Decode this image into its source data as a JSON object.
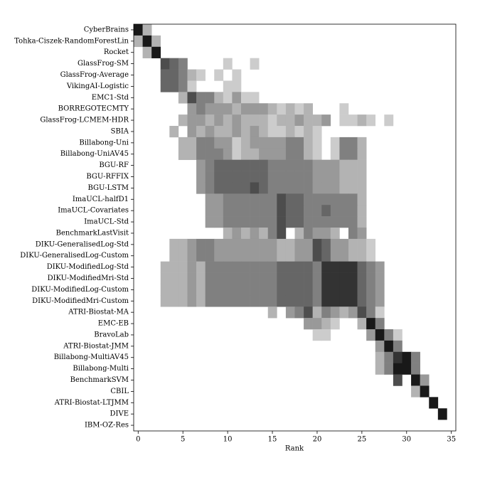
{
  "chart_data": {
    "type": "heatmap",
    "xlabel": "Rank",
    "colormap": "Greys",
    "rows": [
      "CyberBrains",
      "Tohka-Ciszek-RandomForestLin",
      "Rocket",
      "GlassFrog-SM",
      "GlassFrog-Average",
      "VikingAI-Logistic",
      "EMC1-Std",
      "BORREGOTECMTY",
      "GlassFrog-LCMEM-HDR",
      "SBIA",
      "Billabong-Uni",
      "Billabong-UniAV45",
      "BGU-RF",
      "BGU-RFFIX",
      "BGU-LSTM",
      "ImaUCL-halfD1",
      "ImaUCL-Covariates",
      "ImaUCL-Std",
      "BenchmarkLastVisit",
      "DIKU-GeneralisedLog-Std",
      "DIKU-GeneralisedLog-Custom",
      "DIKU-ModifiedLog-Std",
      "DIKU-ModifiedMri-Std",
      "DIKU-ModifiedLog-Custom",
      "DIKU-ModifiedMri-Custom",
      "ATRI-Biostat-MA",
      "EMC-EB",
      "BravoLab",
      "ATRI-Biostat-JMM",
      "Billabong-MultiAV45",
      "Billabong-Multi",
      "BenchmarkSVM",
      "CBIL",
      "ATRI-Biostat-LTJMM",
      "DIVE",
      "IBM-OZ-Res"
    ],
    "x": [
      0,
      1,
      2,
      3,
      4,
      5,
      6,
      7,
      8,
      9,
      10,
      11,
      12,
      13,
      14,
      15,
      16,
      17,
      18,
      19,
      20,
      21,
      22,
      23,
      24,
      25,
      26,
      27,
      28,
      29,
      30,
      31,
      32,
      33,
      34,
      35
    ],
    "xlim": [
      -0.5,
      35.5
    ],
    "xticks": [
      0,
      5,
      10,
      15,
      20,
      25,
      30,
      35
    ],
    "values": [
      [
        0.9,
        0.3,
        null,
        null,
        null,
        null,
        null,
        null,
        null,
        null,
        null,
        null,
        null,
        null,
        null,
        null,
        null,
        null,
        null,
        null,
        null,
        null,
        null,
        null,
        null,
        null,
        null,
        null,
        null,
        null,
        null,
        null,
        null,
        null,
        null,
        null
      ],
      [
        0.3,
        0.9,
        0.3,
        null,
        null,
        null,
        null,
        null,
        null,
        null,
        null,
        null,
        null,
        null,
        null,
        null,
        null,
        null,
        null,
        null,
        null,
        null,
        null,
        null,
        null,
        null,
        null,
        null,
        null,
        null,
        null,
        null,
        null,
        null,
        null,
        null
      ],
      [
        null,
        0.3,
        0.9,
        null,
        null,
        null,
        null,
        null,
        null,
        null,
        null,
        null,
        null,
        null,
        null,
        null,
        null,
        null,
        null,
        null,
        null,
        null,
        null,
        null,
        null,
        null,
        null,
        null,
        null,
        null,
        null,
        null,
        null,
        null,
        null,
        null
      ],
      [
        null,
        null,
        null,
        0.7,
        0.6,
        0.5,
        null,
        null,
        null,
        null,
        0.2,
        null,
        null,
        0.2,
        null,
        null,
        null,
        null,
        null,
        null,
        null,
        null,
        null,
        null,
        null,
        null,
        null,
        null,
        null,
        null,
        null,
        null,
        null,
        null,
        null,
        null
      ],
      [
        null,
        null,
        null,
        0.6,
        0.6,
        0.5,
        0.3,
        0.2,
        null,
        0.2,
        null,
        0.2,
        null,
        null,
        null,
        null,
        null,
        null,
        null,
        null,
        null,
        null,
        null,
        null,
        null,
        null,
        null,
        null,
        null,
        null,
        null,
        null,
        null,
        null,
        null,
        null
      ],
      [
        null,
        null,
        null,
        0.6,
        0.6,
        0.5,
        0.2,
        null,
        null,
        null,
        0.2,
        0.2,
        null,
        null,
        null,
        null,
        null,
        null,
        null,
        null,
        null,
        null,
        null,
        null,
        null,
        null,
        null,
        null,
        null,
        null,
        null,
        null,
        null,
        null,
        null,
        null
      ],
      [
        null,
        null,
        null,
        null,
        null,
        0.3,
        0.7,
        0.5,
        0.5,
        0.3,
        0.2,
        0.4,
        0.2,
        0.2,
        null,
        null,
        null,
        null,
        null,
        null,
        null,
        null,
        null,
        null,
        null,
        null,
        null,
        null,
        null,
        null,
        null,
        null,
        null,
        null,
        null,
        null
      ],
      [
        null,
        null,
        null,
        null,
        null,
        null,
        0.4,
        0.5,
        0.4,
        0.4,
        0.4,
        0.3,
        0.4,
        0.4,
        0.4,
        0.3,
        0.2,
        0.3,
        0.2,
        0.3,
        null,
        null,
        null,
        0.2,
        null,
        null,
        null,
        null,
        null,
        null,
        null,
        null,
        null,
        null,
        null,
        null
      ],
      [
        null,
        null,
        null,
        null,
        null,
        0.3,
        0.4,
        0.4,
        0.3,
        0.4,
        0.3,
        0.4,
        0.3,
        0.3,
        0.3,
        0.2,
        0.3,
        0.3,
        0.4,
        0.3,
        0.3,
        0.4,
        null,
        0.2,
        0.2,
        0.3,
        0.2,
        null,
        0.2,
        null,
        null,
        null,
        null,
        null,
        null,
        null
      ],
      [
        null,
        null,
        null,
        null,
        0.3,
        null,
        0.4,
        0.3,
        0.4,
        0.3,
        0.3,
        0.4,
        0.3,
        0.4,
        0.3,
        0.2,
        0.2,
        0.3,
        0.2,
        0.3,
        0.2,
        null,
        null,
        null,
        null,
        null,
        null,
        null,
        null,
        null,
        null,
        null,
        null,
        null,
        null,
        null
      ],
      [
        null,
        null,
        null,
        null,
        null,
        0.3,
        0.3,
        0.5,
        0.5,
        0.4,
        0.4,
        0.2,
        0.3,
        0.4,
        0.4,
        0.4,
        0.4,
        0.5,
        0.5,
        0.3,
        0.2,
        null,
        0.2,
        0.5,
        0.5,
        0.3,
        null,
        null,
        null,
        null,
        null,
        null,
        null,
        null,
        null,
        null
      ],
      [
        null,
        null,
        null,
        null,
        null,
        0.3,
        0.3,
        0.5,
        0.5,
        0.5,
        0.4,
        0.2,
        0.3,
        0.3,
        0.4,
        0.4,
        0.4,
        0.5,
        0.5,
        0.3,
        0.2,
        null,
        0.2,
        0.5,
        0.5,
        0.3,
        null,
        null,
        null,
        null,
        null,
        null,
        null,
        null,
        null,
        null
      ],
      [
        null,
        null,
        null,
        null,
        null,
        null,
        null,
        0.4,
        0.5,
        0.6,
        0.6,
        0.6,
        0.6,
        0.6,
        0.6,
        0.5,
        0.5,
        0.5,
        0.5,
        0.5,
        0.4,
        0.4,
        0.4,
        0.3,
        0.3,
        0.3,
        null,
        null,
        null,
        null,
        null,
        null,
        null,
        null,
        null,
        null
      ],
      [
        null,
        null,
        null,
        null,
        null,
        null,
        null,
        0.4,
        0.5,
        0.6,
        0.6,
        0.6,
        0.6,
        0.6,
        0.6,
        0.5,
        0.5,
        0.5,
        0.5,
        0.5,
        0.4,
        0.4,
        0.4,
        0.3,
        0.3,
        0.3,
        null,
        null,
        null,
        null,
        null,
        null,
        null,
        null,
        null,
        null
      ],
      [
        null,
        null,
        null,
        null,
        null,
        null,
        null,
        0.4,
        0.5,
        0.6,
        0.6,
        0.6,
        0.6,
        0.7,
        0.6,
        0.5,
        0.5,
        0.5,
        0.5,
        0.5,
        0.4,
        0.4,
        0.4,
        0.3,
        0.3,
        0.3,
        null,
        null,
        null,
        null,
        null,
        null,
        null,
        null,
        null,
        null
      ],
      [
        null,
        null,
        null,
        null,
        null,
        null,
        null,
        null,
        0.4,
        0.4,
        0.5,
        0.5,
        0.5,
        0.5,
        0.5,
        0.5,
        0.7,
        0.6,
        0.6,
        0.5,
        0.5,
        0.5,
        0.5,
        0.5,
        0.5,
        0.3,
        null,
        null,
        null,
        null,
        null,
        null,
        null,
        null,
        null,
        null
      ],
      [
        null,
        null,
        null,
        null,
        null,
        null,
        null,
        null,
        0.4,
        0.4,
        0.5,
        0.5,
        0.5,
        0.5,
        0.5,
        0.5,
        0.7,
        0.6,
        0.6,
        0.5,
        0.5,
        0.6,
        0.5,
        0.5,
        0.5,
        0.3,
        null,
        null,
        null,
        null,
        null,
        null,
        null,
        null,
        null,
        null
      ],
      [
        null,
        null,
        null,
        null,
        null,
        null,
        null,
        null,
        0.4,
        0.4,
        0.5,
        0.5,
        0.5,
        0.5,
        0.5,
        0.5,
        0.7,
        0.6,
        0.6,
        0.5,
        0.5,
        0.5,
        0.5,
        0.5,
        0.5,
        0.3,
        null,
        null,
        null,
        null,
        null,
        null,
        null,
        null,
        null,
        null
      ],
      [
        null,
        null,
        null,
        null,
        null,
        null,
        null,
        null,
        null,
        null,
        0.3,
        0.4,
        0.3,
        0.4,
        0.3,
        0.5,
        0.7,
        null,
        0.3,
        0.5,
        0.4,
        0.4,
        0.3,
        null,
        0.5,
        0.4,
        null,
        null,
        null,
        null,
        null,
        null,
        null,
        null,
        null,
        null
      ],
      [
        null,
        null,
        null,
        null,
        0.3,
        0.3,
        0.4,
        0.5,
        0.5,
        0.4,
        0.4,
        0.4,
        0.4,
        0.4,
        0.4,
        0.4,
        0.3,
        0.3,
        0.4,
        0.4,
        0.7,
        0.6,
        0.4,
        0.4,
        0.3,
        0.3,
        0.2,
        null,
        null,
        null,
        null,
        null,
        null,
        null,
        null,
        null
      ],
      [
        null,
        null,
        null,
        null,
        0.3,
        0.3,
        0.4,
        0.5,
        0.5,
        0.4,
        0.4,
        0.4,
        0.4,
        0.4,
        0.4,
        0.4,
        0.3,
        0.3,
        0.4,
        0.4,
        0.7,
        0.6,
        0.4,
        0.4,
        0.3,
        0.3,
        0.2,
        null,
        null,
        null,
        null,
        null,
        null,
        null,
        null,
        null
      ],
      [
        null,
        null,
        null,
        0.3,
        0.3,
        0.3,
        0.4,
        0.3,
        0.5,
        0.5,
        0.5,
        0.5,
        0.5,
        0.5,
        0.5,
        0.5,
        0.6,
        0.6,
        0.6,
        0.6,
        0.5,
        0.8,
        0.8,
        0.8,
        0.8,
        0.6,
        0.5,
        0.4,
        null,
        null,
        null,
        null,
        null,
        null,
        null,
        null
      ],
      [
        null,
        null,
        null,
        0.3,
        0.3,
        0.3,
        0.4,
        0.3,
        0.5,
        0.5,
        0.5,
        0.5,
        0.5,
        0.5,
        0.5,
        0.5,
        0.6,
        0.6,
        0.6,
        0.6,
        0.5,
        0.8,
        0.8,
        0.8,
        0.8,
        0.6,
        0.5,
        0.4,
        null,
        null,
        null,
        null,
        null,
        null,
        null,
        null
      ],
      [
        null,
        null,
        null,
        0.3,
        0.3,
        0.3,
        0.4,
        0.3,
        0.5,
        0.5,
        0.5,
        0.5,
        0.5,
        0.5,
        0.5,
        0.5,
        0.6,
        0.6,
        0.6,
        0.6,
        0.5,
        0.8,
        0.8,
        0.8,
        0.8,
        0.6,
        0.5,
        0.4,
        null,
        null,
        null,
        null,
        null,
        null,
        null,
        null
      ],
      [
        null,
        null,
        null,
        0.3,
        0.3,
        0.3,
        0.4,
        0.3,
        0.5,
        0.5,
        0.5,
        0.5,
        0.5,
        0.5,
        0.5,
        0.5,
        0.6,
        0.6,
        0.6,
        0.6,
        0.5,
        0.8,
        0.8,
        0.8,
        0.8,
        0.6,
        0.5,
        0.4,
        null,
        null,
        null,
        null,
        null,
        null,
        null,
        null
      ],
      [
        null,
        null,
        null,
        null,
        null,
        null,
        null,
        null,
        null,
        null,
        null,
        null,
        null,
        null,
        null,
        0.3,
        null,
        0.4,
        0.5,
        0.7,
        0.3,
        0.5,
        0.4,
        0.3,
        0.4,
        0.7,
        0.5,
        0.2,
        null,
        null,
        null,
        null,
        null,
        null,
        null,
        null
      ],
      [
        null,
        null,
        null,
        null,
        null,
        null,
        null,
        null,
        null,
        null,
        null,
        null,
        null,
        null,
        null,
        null,
        null,
        null,
        null,
        0.4,
        0.4,
        0.3,
        0.2,
        null,
        null,
        0.3,
        0.9,
        0.5,
        null,
        null,
        null,
        null,
        null,
        null,
        null,
        null
      ],
      [
        null,
        null,
        null,
        null,
        null,
        null,
        null,
        null,
        null,
        null,
        null,
        null,
        null,
        null,
        null,
        null,
        null,
        null,
        null,
        null,
        0.2,
        0.2,
        null,
        null,
        null,
        null,
        0.4,
        0.9,
        0.5,
        0.2,
        null,
        null,
        null,
        null,
        null,
        null
      ],
      [
        null,
        null,
        null,
        null,
        null,
        null,
        null,
        null,
        null,
        null,
        null,
        null,
        null,
        null,
        null,
        null,
        null,
        null,
        null,
        null,
        null,
        null,
        null,
        null,
        null,
        null,
        null,
        0.4,
        0.9,
        0.5,
        null,
        null,
        null,
        null,
        null,
        null
      ],
      [
        null,
        null,
        null,
        null,
        null,
        null,
        null,
        null,
        null,
        null,
        null,
        null,
        null,
        null,
        null,
        null,
        null,
        null,
        null,
        null,
        null,
        null,
        null,
        null,
        null,
        null,
        null,
        0.3,
        0.5,
        0.8,
        0.9,
        0.5,
        null,
        null,
        null,
        null
      ],
      [
        null,
        null,
        null,
        null,
        null,
        null,
        null,
        null,
        null,
        null,
        null,
        null,
        null,
        null,
        null,
        null,
        null,
        null,
        null,
        null,
        null,
        null,
        null,
        null,
        null,
        null,
        null,
        0.3,
        0.5,
        0.9,
        0.9,
        0.5,
        null,
        null,
        null,
        null
      ],
      [
        null,
        null,
        null,
        null,
        null,
        null,
        null,
        null,
        null,
        null,
        null,
        null,
        null,
        null,
        null,
        null,
        null,
        null,
        null,
        null,
        null,
        null,
        null,
        null,
        null,
        null,
        null,
        null,
        null,
        0.7,
        null,
        0.9,
        0.4,
        null,
        null,
        null
      ],
      [
        null,
        null,
        null,
        null,
        null,
        null,
        null,
        null,
        null,
        null,
        null,
        null,
        null,
        null,
        null,
        null,
        null,
        null,
        null,
        null,
        null,
        null,
        null,
        null,
        null,
        null,
        null,
        null,
        null,
        null,
        null,
        0.3,
        0.9,
        null,
        null,
        null
      ],
      [
        null,
        null,
        null,
        null,
        null,
        null,
        null,
        null,
        null,
        null,
        null,
        null,
        null,
        null,
        null,
        null,
        null,
        null,
        null,
        null,
        null,
        null,
        null,
        null,
        null,
        null,
        null,
        null,
        null,
        null,
        null,
        null,
        null,
        0.9,
        null,
        null
      ],
      [
        null,
        null,
        null,
        null,
        null,
        null,
        null,
        null,
        null,
        null,
        null,
        null,
        null,
        null,
        null,
        null,
        null,
        null,
        null,
        null,
        null,
        null,
        null,
        null,
        null,
        null,
        null,
        null,
        null,
        null,
        null,
        null,
        null,
        null,
        0.9,
        null
      ],
      [
        null,
        null,
        null,
        null,
        null,
        null,
        null,
        null,
        null,
        null,
        null,
        null,
        null,
        null,
        null,
        null,
        null,
        null,
        null,
        null,
        null,
        null,
        null,
        null,
        null,
        null,
        null,
        null,
        null,
        null,
        null,
        null,
        null,
        null,
        null,
        null
      ]
    ]
  }
}
